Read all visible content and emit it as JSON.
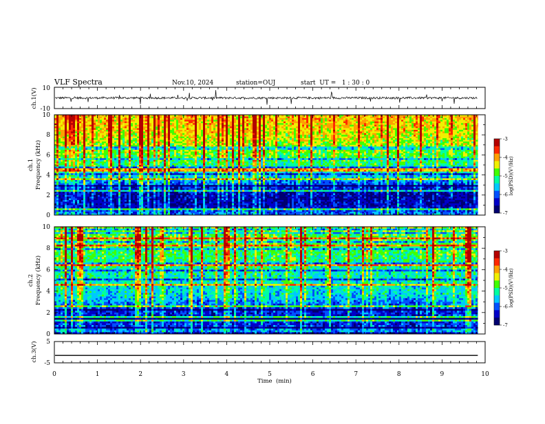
{
  "header": {
    "title": "VLF Spectra",
    "date": "Nov.10, 2024",
    "station": "station=OUJ",
    "start": "start  UT =   1 : 30 : 0"
  },
  "chart_data": [
    {
      "type": "line",
      "name": "ch1-waveform",
      "ylabel": "ch.1(V)",
      "ylim": [
        -10,
        10
      ],
      "yticks": [
        "10",
        "-10"
      ],
      "xlim": [
        0,
        10
      ],
      "summary": {
        "baseline_volts": 0,
        "typical_spread_volts": 2,
        "data_end_min": 9.83
      }
    },
    {
      "type": "heatmap",
      "name": "ch1-spectrogram",
      "ylabel": "ch.1\nFrequency  (kHz)",
      "ylim": [
        0,
        10
      ],
      "yticks": [
        "0",
        "2",
        "4",
        "6",
        "8",
        "10"
      ],
      "xlim": [
        0,
        10
      ],
      "data_end_min": 9.83,
      "profile": [
        {
          "freq_khz": 0.2,
          "log_psd": -5.9
        },
        {
          "freq_khz": 0.8,
          "log_psd": -6.5
        },
        {
          "freq_khz": 1.5,
          "log_psd": -6.6
        },
        {
          "freq_khz": 2.5,
          "log_psd": -6.5
        },
        {
          "freq_khz": 3.5,
          "log_psd": -5.7
        },
        {
          "freq_khz": 4.5,
          "log_psd": -5.3
        },
        {
          "freq_khz": 5.5,
          "log_psd": -5.0
        },
        {
          "freq_khz": 6.5,
          "log_psd": -4.7
        },
        {
          "freq_khz": 7.5,
          "log_psd": -4.5
        },
        {
          "freq_khz": 8.5,
          "log_psd": -4.3
        },
        {
          "freq_khz": 9.5,
          "log_psd": -4.2
        }
      ],
      "colorbar": {
        "label": "log(PSD)(V²/Hz)",
        "range": [
          -7,
          -3
        ],
        "ticks": [
          "-3",
          "-4",
          "-5",
          "-6",
          "-7"
        ]
      }
    },
    {
      "type": "heatmap",
      "name": "ch2-spectrogram",
      "ylabel": "ch.2\nFrequency  (kHz)",
      "ylim": [
        0,
        10
      ],
      "yticks": [
        "0",
        "2",
        "4",
        "6",
        "8",
        "10"
      ],
      "xlim": [
        0,
        10
      ],
      "data_end_min": 9.83,
      "profile": [
        {
          "freq_khz": 0.2,
          "log_psd": -5.7
        },
        {
          "freq_khz": 0.8,
          "log_psd": -6.2
        },
        {
          "freq_khz": 1.5,
          "log_psd": -6.4
        },
        {
          "freq_khz": 2.5,
          "log_psd": -6.1
        },
        {
          "freq_khz": 3.5,
          "log_psd": -5.5
        },
        {
          "freq_khz": 4.5,
          "log_psd": -5.4
        },
        {
          "freq_khz": 5.5,
          "log_psd": -5.3
        },
        {
          "freq_khz": 6.5,
          "log_psd": -5.1
        },
        {
          "freq_khz": 7.5,
          "log_psd": -5.0
        },
        {
          "freq_khz": 8.5,
          "log_psd": -4.9
        },
        {
          "freq_khz": 9.5,
          "log_psd": -4.8
        }
      ],
      "colorbar": {
        "label": "log(PSD)(V²/Hz)",
        "range": [
          -7,
          -3
        ],
        "ticks": [
          "-3",
          "-4",
          "-5",
          "-6",
          "-7"
        ]
      }
    },
    {
      "type": "line",
      "name": "ch3-waveform",
      "ylabel": "ch.3(V)",
      "ylim": [
        -5,
        5
      ],
      "yticks": [
        "5",
        "-5"
      ],
      "xlim": [
        0,
        10
      ],
      "xlabel": "Time  (min)",
      "xticks": [
        "0",
        "1",
        "2",
        "3",
        "4",
        "5",
        "6",
        "7",
        "8",
        "9",
        "10"
      ],
      "summary": {
        "baseline_volts": -1.5,
        "data_end_min": 9.83
      }
    }
  ],
  "colors": {
    "colormap": [
      "#000070",
      "#0000c8",
      "#0050ff",
      "#00c8ff",
      "#00ffa0",
      "#40ff00",
      "#f0f000",
      "#ffa000",
      "#ff2800",
      "#b40000"
    ],
    "line": "#000000",
    "axes": "#000000"
  }
}
